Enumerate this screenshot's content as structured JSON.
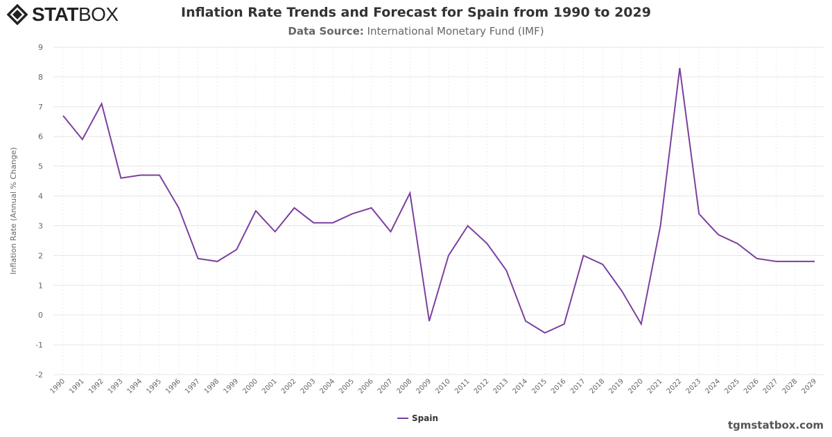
{
  "logo": {
    "text_bold": "STAT",
    "text_light": "BOX"
  },
  "header": {
    "title": "Inflation Rate Trends and Forecast for Spain from 1990 to 2029",
    "subtitle_label": "Data Source:",
    "subtitle_value": "International Monetary Fund (IMF)"
  },
  "credit": "tgmstatbox.com",
  "colors": {
    "series": "#7b3f9e",
    "grid": "#e6e6e6",
    "text": "#666666"
  },
  "chart_data": {
    "type": "line",
    "title": "Inflation Rate Trends and Forecast for Spain from 1990 to 2029",
    "xlabel": "",
    "ylabel": "Inflation Rate (Annual % Change)",
    "ylim": [
      -2,
      9
    ],
    "yticks": [
      -2,
      -1,
      0,
      1,
      2,
      3,
      4,
      5,
      6,
      7,
      8,
      9
    ],
    "grid": true,
    "legend": "bottom-center",
    "x": [
      "1990",
      "1991",
      "1992",
      "1993",
      "1994",
      "1995",
      "1996",
      "1997",
      "1998",
      "1999",
      "2000",
      "2001",
      "2002",
      "2003",
      "2004",
      "2005",
      "2006",
      "2007",
      "2008",
      "2009",
      "2010",
      "2011",
      "2012",
      "2013",
      "2014",
      "2015",
      "2016",
      "2017",
      "2018",
      "2019",
      "2020",
      "2021",
      "2022",
      "2023",
      "2024",
      "2025",
      "2026",
      "2027",
      "2028",
      "2029"
    ],
    "series": [
      {
        "name": "Spain",
        "values": [
          6.7,
          5.9,
          7.1,
          4.6,
          4.7,
          4.7,
          3.6,
          1.9,
          1.8,
          2.2,
          3.5,
          2.8,
          3.6,
          3.1,
          3.1,
          3.4,
          3.6,
          2.8,
          4.1,
          -0.2,
          2.0,
          3.0,
          2.4,
          1.5,
          -0.2,
          -0.6,
          -0.3,
          2.0,
          1.7,
          0.8,
          -0.3,
          3.0,
          8.3,
          3.4,
          2.7,
          2.4,
          1.9,
          1.8,
          1.8,
          1.8
        ]
      }
    ]
  }
}
